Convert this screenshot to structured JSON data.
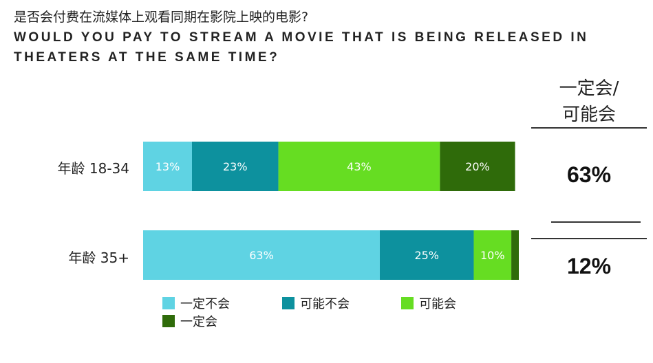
{
  "title_cn": "是否会付费在流媒体上观看同期在影院上映的电影?",
  "title_en": "WOULD YOU PAY TO STREAM A MOVIE THAT IS BEING RELEASED IN THEATERS AT THE SAME TIME?",
  "summary_header_line1": "一定会/",
  "summary_header_line2": "可能会",
  "summary_values": [
    "63%",
    "12%"
  ],
  "chart_data": {
    "type": "bar",
    "orientation": "horizontal",
    "stacked": true,
    "categories": [
      "年龄 18-34",
      "年龄 35+"
    ],
    "series": [
      {
        "name": "一定不会",
        "values": [
          13,
          63
        ],
        "labels": [
          "13%",
          "63%"
        ],
        "color": "#5fd3e3"
      },
      {
        "name": "可能不会",
        "values": [
          23,
          25
        ],
        "labels": [
          "23%",
          "25%"
        ],
        "color": "#0d919e"
      },
      {
        "name": "可能会",
        "values": [
          43,
          10
        ],
        "labels": [
          "43%",
          "10%"
        ],
        "color": "#66dd22"
      },
      {
        "name": "一定会",
        "values": [
          20,
          2
        ],
        "labels": [
          "20%",
          ""
        ],
        "color": "#2f6b0a"
      }
    ],
    "xlim": [
      0,
      100
    ],
    "legend_position": "bottom"
  }
}
